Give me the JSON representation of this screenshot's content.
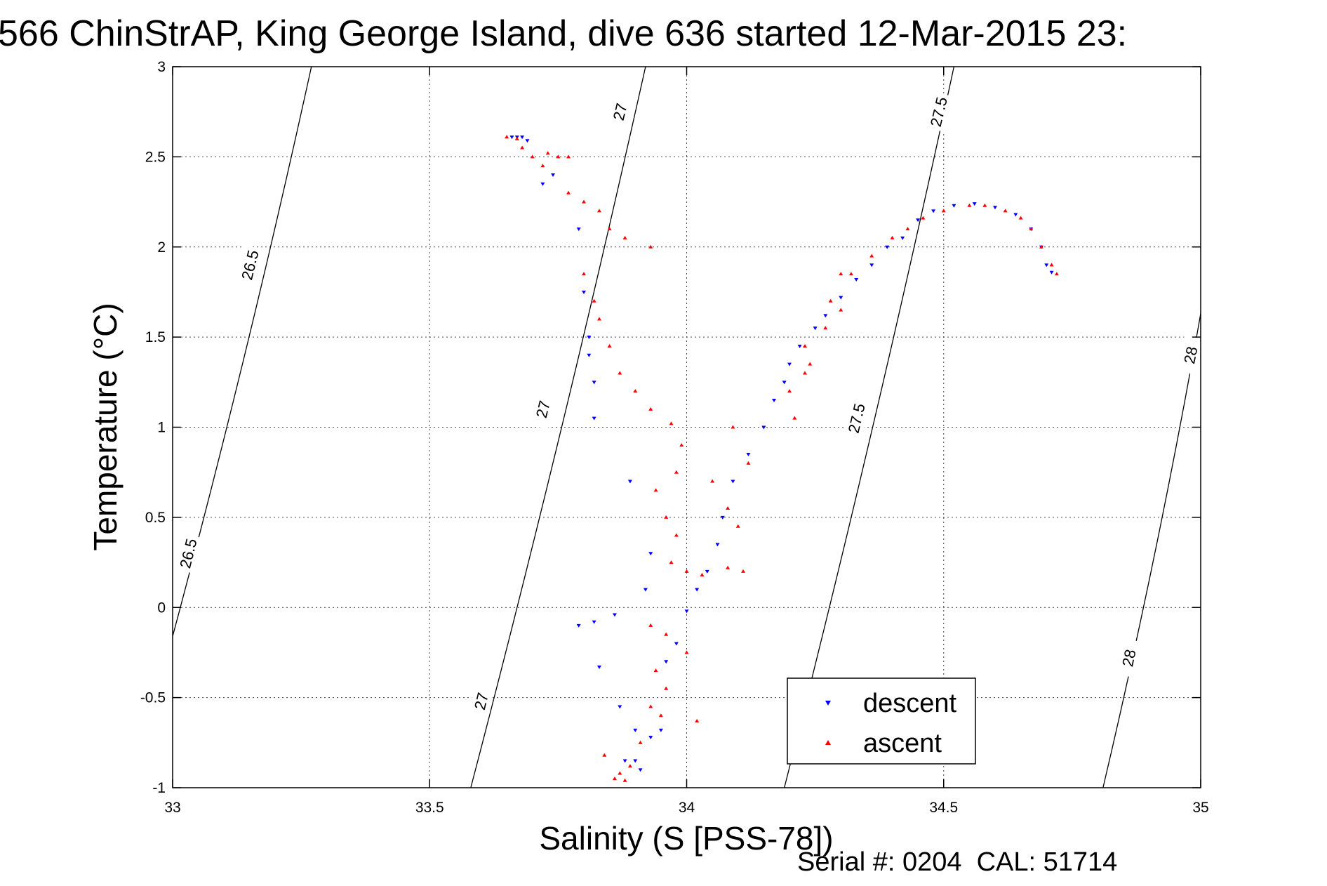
{
  "chart_data": {
    "type": "scatter",
    "title": "566 ChinStrAP, King George Island, dive 636 started 12-Mar-2015 23:",
    "xlabel": "Salinity (S [PSS-78])",
    "ylabel": "Temperature (°C)",
    "footer": "Serial #: 0204  CAL: 51714",
    "xlim": [
      33,
      35
    ],
    "ylim": [
      -1,
      3
    ],
    "xticks": [
      "33",
      "33.5",
      "34",
      "34.5",
      "35"
    ],
    "yticks": [
      "-1",
      "-0.5",
      "0",
      "0.5",
      "1",
      "1.5",
      "2",
      "2.5",
      "3"
    ],
    "grid": true,
    "legend_position": "bottom-right",
    "density_contours": [
      {
        "label": "26.5",
        "points": [
          [
            33.0,
            -0.16
          ],
          [
            33.27,
            3.0
          ]
        ],
        "labels_at": [
          [
            33.03,
            0.3
          ],
          [
            33.15,
            1.9
          ]
        ]
      },
      {
        "label": "27",
        "points": [
          [
            33.58,
            -1.0
          ],
          [
            33.92,
            3.0
          ]
        ],
        "labels_at": [
          [
            33.6,
            -0.52
          ],
          [
            33.72,
            1.1
          ],
          [
            33.87,
            2.75
          ]
        ]
      },
      {
        "label": "27.5",
        "points": [
          [
            34.19,
            -1.0
          ],
          [
            34.52,
            3.0
          ]
        ],
        "labels_at": [
          [
            34.33,
            1.05
          ],
          [
            34.49,
            2.75
          ]
        ]
      },
      {
        "label": "28",
        "points": [
          [
            34.81,
            -1.0
          ],
          [
            35.0,
            1.63
          ]
        ],
        "labels_at": [
          [
            34.86,
            -0.28
          ],
          [
            34.98,
            1.4
          ]
        ]
      }
    ],
    "series": [
      {
        "name": "descent",
        "color": "#0000ff",
        "marker": "triangle-down",
        "points": [
          [
            33.66,
            2.61
          ],
          [
            33.67,
            2.61
          ],
          [
            33.68,
            2.61
          ],
          [
            33.69,
            2.59
          ],
          [
            33.72,
            2.35
          ],
          [
            33.74,
            2.4
          ],
          [
            33.79,
            2.1
          ],
          [
            33.8,
            1.75
          ],
          [
            33.81,
            1.5
          ],
          [
            33.81,
            1.4
          ],
          [
            33.82,
            1.25
          ],
          [
            33.82,
            1.05
          ],
          [
            33.89,
            0.7
          ],
          [
            33.93,
            0.3
          ],
          [
            33.92,
            0.1
          ],
          [
            33.79,
            -0.1
          ],
          [
            33.82,
            -0.08
          ],
          [
            33.86,
            -0.04
          ],
          [
            33.83,
            -0.33
          ],
          [
            33.87,
            -0.55
          ],
          [
            33.9,
            -0.68
          ],
          [
            33.93,
            -0.72
          ],
          [
            33.95,
            -0.68
          ],
          [
            33.91,
            -0.9
          ],
          [
            33.9,
            -0.85
          ],
          [
            33.88,
            -0.85
          ],
          [
            33.96,
            -0.3
          ],
          [
            33.98,
            -0.2
          ],
          [
            34.0,
            -0.02
          ],
          [
            34.02,
            0.1
          ],
          [
            34.04,
            0.2
          ],
          [
            34.06,
            0.35
          ],
          [
            34.07,
            0.5
          ],
          [
            34.09,
            0.7
          ],
          [
            34.12,
            0.85
          ],
          [
            34.15,
            1.0
          ],
          [
            34.17,
            1.15
          ],
          [
            34.19,
            1.25
          ],
          [
            34.2,
            1.35
          ],
          [
            34.22,
            1.45
          ],
          [
            34.25,
            1.55
          ],
          [
            34.27,
            1.62
          ],
          [
            34.3,
            1.72
          ],
          [
            34.33,
            1.82
          ],
          [
            34.36,
            1.9
          ],
          [
            34.39,
            2.0
          ],
          [
            34.42,
            2.05
          ],
          [
            34.45,
            2.15
          ],
          [
            34.48,
            2.2
          ],
          [
            34.52,
            2.23
          ],
          [
            34.56,
            2.24
          ],
          [
            34.6,
            2.22
          ],
          [
            34.64,
            2.18
          ],
          [
            34.67,
            2.1
          ],
          [
            34.69,
            2.0
          ],
          [
            34.7,
            1.9
          ],
          [
            34.71,
            1.86
          ]
        ]
      },
      {
        "name": "ascent",
        "color": "#ff0000",
        "marker": "triangle-up",
        "points": [
          [
            33.65,
            2.61
          ],
          [
            33.67,
            2.6
          ],
          [
            33.68,
            2.55
          ],
          [
            33.7,
            2.5
          ],
          [
            33.72,
            2.45
          ],
          [
            33.73,
            2.52
          ],
          [
            33.75,
            2.5
          ],
          [
            33.77,
            2.5
          ],
          [
            33.77,
            2.3
          ],
          [
            33.8,
            2.25
          ],
          [
            33.83,
            2.2
          ],
          [
            33.85,
            2.1
          ],
          [
            33.88,
            2.05
          ],
          [
            33.93,
            2.0
          ],
          [
            33.8,
            1.85
          ],
          [
            33.82,
            1.7
          ],
          [
            33.83,
            1.6
          ],
          [
            33.85,
            1.45
          ],
          [
            33.87,
            1.3
          ],
          [
            33.9,
            1.2
          ],
          [
            33.93,
            1.1
          ],
          [
            33.97,
            1.02
          ],
          [
            33.99,
            0.9
          ],
          [
            33.98,
            0.75
          ],
          [
            33.94,
            0.65
          ],
          [
            33.96,
            0.5
          ],
          [
            33.98,
            0.4
          ],
          [
            33.97,
            0.25
          ],
          [
            34.0,
            0.2
          ],
          [
            34.03,
            0.18
          ],
          [
            34.08,
            0.22
          ],
          [
            34.11,
            0.2
          ],
          [
            33.93,
            -0.1
          ],
          [
            33.96,
            -0.15
          ],
          [
            34.0,
            -0.25
          ],
          [
            33.94,
            -0.35
          ],
          [
            33.96,
            -0.45
          ],
          [
            33.93,
            -0.55
          ],
          [
            33.95,
            -0.6
          ],
          [
            33.91,
            -0.75
          ],
          [
            33.89,
            -0.88
          ],
          [
            33.87,
            -0.92
          ],
          [
            33.86,
            -0.95
          ],
          [
            33.88,
            -0.96
          ],
          [
            33.84,
            -0.82
          ],
          [
            34.02,
            -0.63
          ],
          [
            34.05,
            0.7
          ],
          [
            34.08,
            0.55
          ],
          [
            34.1,
            0.45
          ],
          [
            34.09,
            1.0
          ],
          [
            34.12,
            0.8
          ],
          [
            34.2,
            1.2
          ],
          [
            34.23,
            1.3
          ],
          [
            34.24,
            1.35
          ],
          [
            34.21,
            1.05
          ],
          [
            34.23,
            1.45
          ],
          [
            34.27,
            1.55
          ],
          [
            34.28,
            1.7
          ],
          [
            34.3,
            1.85
          ],
          [
            34.32,
            1.85
          ],
          [
            34.3,
            1.65
          ],
          [
            34.36,
            1.95
          ],
          [
            34.4,
            2.05
          ],
          [
            34.43,
            2.1
          ],
          [
            34.46,
            2.16
          ],
          [
            34.5,
            2.2
          ],
          [
            34.55,
            2.23
          ],
          [
            34.58,
            2.23
          ],
          [
            34.62,
            2.2
          ],
          [
            34.65,
            2.16
          ],
          [
            34.67,
            2.1
          ],
          [
            34.69,
            2.0
          ],
          [
            34.71,
            1.9
          ],
          [
            34.72,
            1.85
          ]
        ]
      }
    ]
  }
}
